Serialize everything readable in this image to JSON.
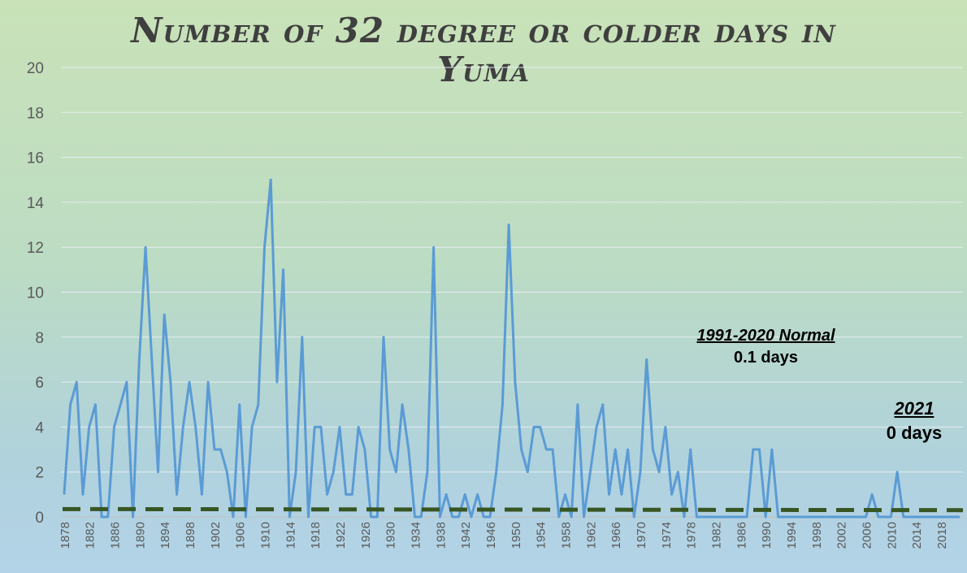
{
  "chart_data": {
    "type": "line",
    "title": "Number of 32 degree or colder days in Yuma",
    "xlabel": "",
    "ylabel": "",
    "ylim": [
      0,
      20
    ],
    "yticks": [
      "0",
      "2",
      "4",
      "6",
      "8",
      "10",
      "12",
      "14",
      "16",
      "18",
      "20"
    ],
    "grid": true,
    "x_start": 1878,
    "x_end": 2021,
    "x_tick_labels": [
      "1878",
      "1882",
      "1886",
      "1890",
      "1894",
      "1898",
      "1902",
      "1906",
      "1910",
      "1914",
      "1918",
      "1922",
      "1926",
      "1930",
      "1934",
      "1938",
      "1942",
      "1946",
      "1950",
      "1954",
      "1958",
      "1962",
      "1966",
      "1970",
      "1974",
      "1978",
      "1982",
      "1986",
      "1990",
      "1994",
      "1998",
      "2002",
      "2006",
      "2010",
      "2014",
      "2018"
    ],
    "series": [
      {
        "name": "",
        "color": "#5b9bd5",
        "values": [
          1,
          5,
          6,
          1,
          4,
          5,
          0,
          0,
          4,
          5,
          6,
          0,
          7,
          12,
          7,
          2,
          9,
          6,
          1,
          4,
          6,
          4,
          1,
          6,
          3,
          3,
          2,
          0,
          5,
          0,
          4,
          5,
          12,
          15,
          6,
          11,
          0,
          2,
          8,
          0,
          4,
          4,
          1,
          2,
          4,
          1,
          1,
          4,
          3,
          0,
          0,
          8,
          3,
          2,
          5,
          3,
          0,
          0,
          2,
          12,
          0,
          1,
          0,
          0,
          1,
          0,
          1,
          0,
          0,
          2,
          5,
          13,
          6,
          3,
          2,
          4,
          4,
          3,
          3,
          0,
          1,
          0,
          5,
          0,
          2,
          4,
          5,
          1,
          3,
          1,
          3,
          0,
          2,
          7,
          3,
          2,
          4,
          1,
          2,
          0,
          3,
          0,
          0,
          0,
          0,
          0,
          0,
          0,
          0,
          0,
          3,
          3,
          0,
          3,
          0,
          0,
          0,
          0,
          0,
          0,
          0,
          0,
          0,
          0,
          0,
          0,
          0,
          0,
          0,
          1,
          0,
          0,
          0,
          2,
          0,
          0,
          0,
          0,
          0,
          0,
          0,
          0,
          0,
          0
        ]
      },
      {
        "name": "",
        "color": "#375623",
        "dashed": true,
        "values_start_end": [
          0.35,
          0.3
        ]
      }
    ],
    "annotations": [
      {
        "title": "1991-2020 Normal",
        "value": "0.1 days"
      },
      {
        "title": "2021",
        "value": "0 days"
      }
    ]
  }
}
